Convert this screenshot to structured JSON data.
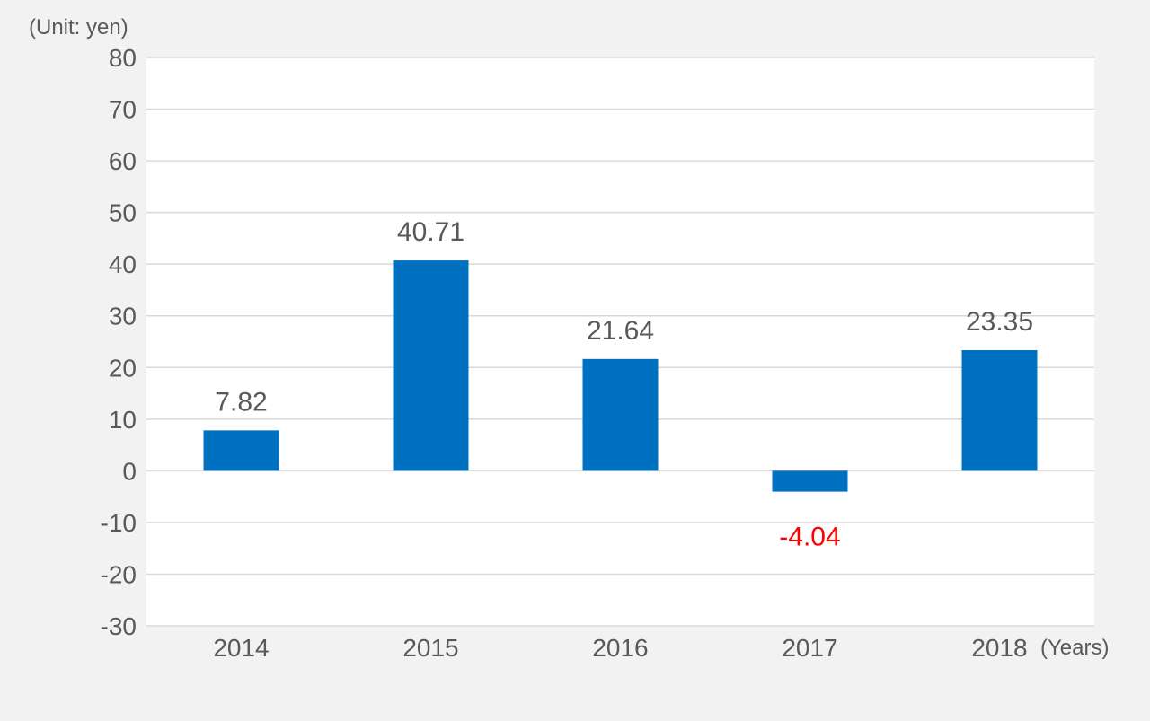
{
  "chart_data": {
    "type": "bar",
    "categories": [
      "2014",
      "2015",
      "2016",
      "2017",
      "2018"
    ],
    "values": [
      7.82,
      40.71,
      21.64,
      -4.04,
      23.35
    ],
    "data_labels": [
      "7.82",
      "40.71",
      "21.64",
      "-4.04",
      "23.35"
    ],
    "y_unit_label": "(Unit: yen)",
    "x_unit_label": "(Years)",
    "ylim": [
      -30,
      80
    ],
    "y_ticks": [
      80,
      70,
      60,
      50,
      40,
      30,
      20,
      10,
      0,
      -10,
      -20,
      -30
    ],
    "grid": true,
    "legend": "none",
    "colors": {
      "bar": "#0070c0",
      "positive_label": "#595959",
      "negative_label": "#ff0000",
      "gridline": "#d9d9d9",
      "plot_background": "#ffffff",
      "page_background": "#f2f2f2"
    }
  }
}
